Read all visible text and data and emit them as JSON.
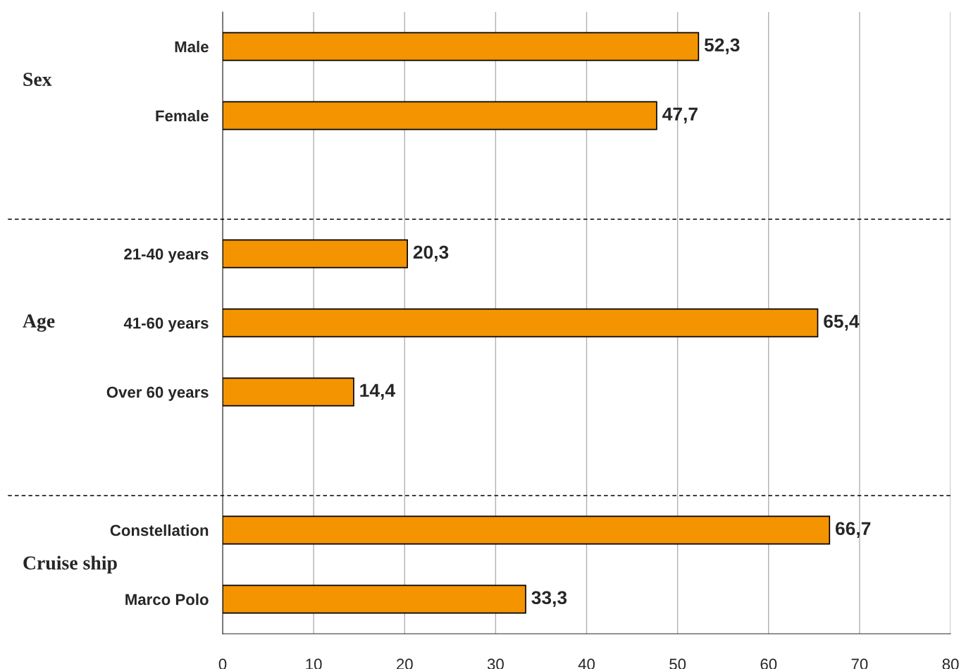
{
  "chart_data": {
    "type": "bar",
    "orientation": "horizontal",
    "categories": [
      "Male",
      "Female",
      null,
      "21-40 years",
      "41-60 years",
      "Over 60 years",
      null,
      "Constellation",
      "Marco Polo"
    ],
    "values": [
      52.3,
      47.7,
      null,
      20.3,
      65.4,
      14.4,
      null,
      66.7,
      33.3
    ],
    "value_labels": [
      "52,3",
      "47,7",
      null,
      "20,3",
      "65,4",
      "14,4",
      null,
      "66,7",
      "33,3"
    ],
    "color": "#f39400",
    "xlim": [
      0,
      80
    ],
    "xticks": [
      0,
      10,
      20,
      30,
      40,
      50,
      60,
      70,
      80
    ],
    "grid": "x",
    "legend": false,
    "annotations": [
      "Sex",
      "Age",
      "Cruise ship"
    ]
  }
}
